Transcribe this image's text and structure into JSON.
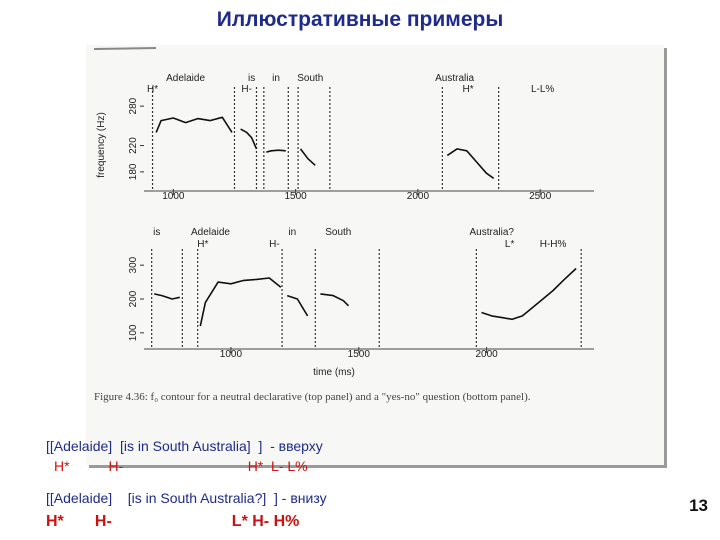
{
  "title": "Иллюстративные примеры",
  "figure": {
    "caption": "Figure 4.36: f₀ contour for a neutral declarative (top panel) and a \"yes-no\" question (bottom panel).",
    "ylabel": "frequency (Hz)",
    "xlabel": "time (ms)"
  },
  "chart_data": [
    {
      "type": "line",
      "panel": "top",
      "ylabel": "frequency (Hz)",
      "yticks": [
        180,
        220,
        280
      ],
      "xticks": [
        1000,
        1500,
        2000,
        2500
      ],
      "xlim": [
        880,
        2720
      ],
      "ylim": [
        160,
        300
      ],
      "words": [
        {
          "text": "Adelaide",
          "x": 1050
        },
        {
          "text": "is",
          "x": 1320
        },
        {
          "text": "in",
          "x": 1420
        },
        {
          "text": "South",
          "x": 1560
        },
        {
          "text": "Australia",
          "x": 2150
        }
      ],
      "tones": [
        {
          "text": "H*",
          "x": 915
        },
        {
          "text": "H-",
          "x": 1300
        },
        {
          "text": "H*",
          "x": 2205
        },
        {
          "text": "L-L%",
          "x": 2510
        }
      ],
      "boundaries_x": [
        915,
        1250,
        1340,
        1370,
        1470,
        1510,
        1640,
        2100,
        2330
      ],
      "series": [
        {
          "x": [
            930,
            950,
            1000,
            1050,
            1100,
            1150,
            1200,
            1240
          ],
          "y": [
            240,
            258,
            262,
            255,
            261,
            258,
            263,
            240
          ]
        },
        {
          "x": [
            1275,
            1300,
            1320,
            1340
          ],
          "y": [
            245,
            240,
            232,
            215
          ]
        },
        {
          "x": [
            1380,
            1400,
            1430,
            1460
          ],
          "y": [
            210,
            212,
            213,
            212
          ]
        },
        {
          "x": [
            1520,
            1550,
            1580
          ],
          "y": [
            215,
            200,
            190
          ]
        },
        {
          "x": [
            2120,
            2160,
            2200,
            2240,
            2280,
            2310
          ],
          "y": [
            205,
            215,
            212,
            195,
            178,
            170
          ]
        }
      ]
    },
    {
      "type": "line",
      "panel": "bottom",
      "yticks": [
        100,
        200,
        300
      ],
      "xticks": [
        1000,
        1500,
        2000
      ],
      "xlim": [
        660,
        2420
      ],
      "ylim": [
        70,
        330
      ],
      "words": [
        {
          "text": "is",
          "x": 710
        },
        {
          "text": "Adelaide",
          "x": 920
        },
        {
          "text": "in",
          "x": 1240
        },
        {
          "text": "South",
          "x": 1420
        },
        {
          "text": "Australia?",
          "x": 2020
        }
      ],
      "tones": [
        {
          "text": "H*",
          "x": 890
        },
        {
          "text": "H-",
          "x": 1170
        },
        {
          "text": "L*",
          "x": 2090
        },
        {
          "text": "H-H%",
          "x": 2260
        }
      ],
      "boundaries_x": [
        690,
        810,
        870,
        1200,
        1330,
        1580,
        1960,
        2370
      ],
      "series": [
        {
          "x": [
            700,
            730,
            770,
            800
          ],
          "y": [
            215,
            210,
            200,
            205
          ]
        },
        {
          "x": [
            880,
            900,
            950,
            1000,
            1050,
            1100,
            1150,
            1195
          ],
          "y": [
            120,
            190,
            250,
            245,
            255,
            258,
            262,
            235
          ]
        },
        {
          "x": [
            1220,
            1260,
            1300
          ],
          "y": [
            210,
            200,
            150
          ]
        },
        {
          "x": [
            1350,
            1400,
            1440,
            1460
          ],
          "y": [
            215,
            210,
            195,
            180
          ]
        },
        {
          "x": [
            1980,
            2020,
            2060,
            2100,
            2140,
            2180,
            2220,
            2260,
            2300,
            2350
          ],
          "y": [
            160,
            150,
            145,
            140,
            150,
            175,
            200,
            225,
            255,
            290
          ]
        }
      ]
    }
  ],
  "examples": {
    "line1": "[[Adelaide]  [is in South Australia]  ]  - вверху",
    "tones1": "H*          H-                                H*  L- L%",
    "line2": "[[Adelaide]    [is in South Australia?]  ] - внизу",
    "tones2": "H*       H-                           L* H- H%"
  },
  "page_number": "13",
  "colors": {
    "title": "#1e2b8c",
    "text": "#1e2b8c",
    "accent": "#cc1111"
  }
}
